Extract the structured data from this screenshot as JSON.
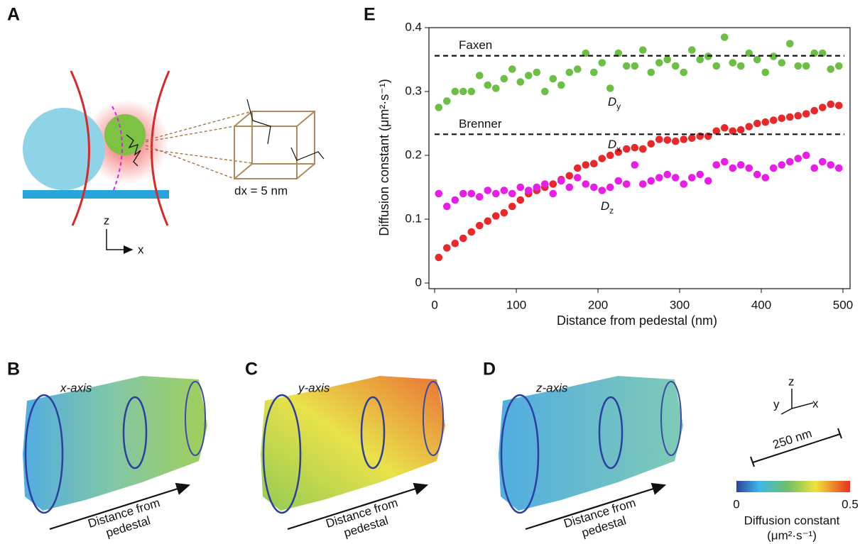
{
  "chart_data": {
    "type": "scatter",
    "panel": "E",
    "xlabel": "Distance from pedestal (nm)",
    "ylabel": "Diffusion constant (μm²·s⁻¹)",
    "xlim": [
      -7,
      508.7
    ],
    "ylim": [
      -0.0089,
      0.4
    ],
    "xticks": [
      0,
      100,
      200,
      300,
      400,
      500
    ],
    "yticks": [
      0,
      0.1,
      0.2,
      0.3,
      0.4
    ],
    "x": [
      5,
      15,
      25,
      35,
      45,
      55,
      65,
      75,
      85,
      95,
      105,
      115,
      125,
      135,
      145,
      155,
      165,
      175,
      185,
      195,
      205,
      215,
      225,
      235,
      245,
      255,
      265,
      275,
      285,
      295,
      305,
      315,
      325,
      335,
      345,
      355,
      365,
      375,
      385,
      395,
      405,
      415,
      425,
      435,
      445,
      455,
      465,
      475,
      485,
      495
    ],
    "series": [
      {
        "label": "D",
        "label_sub": "y",
        "color": "#6cbf44",
        "values": [
          0.275,
          0.285,
          0.3,
          0.3,
          0.3,
          0.325,
          0.31,
          0.305,
          0.32,
          0.335,
          0.315,
          0.325,
          0.33,
          0.3,
          0.32,
          0.31,
          0.33,
          0.335,
          0.36,
          0.33,
          0.345,
          0.305,
          0.36,
          0.34,
          0.34,
          0.365,
          0.33,
          0.345,
          0.35,
          0.34,
          0.33,
          0.365,
          0.35,
          0.355,
          0.34,
          0.385,
          0.345,
          0.34,
          0.36,
          0.35,
          0.33,
          0.355,
          0.345,
          0.375,
          0.34,
          0.34,
          0.36,
          0.36,
          0.335,
          0.34
        ]
      },
      {
        "label": "D",
        "label_sub": "x",
        "color": "#e8282a",
        "values": [
          0.04,
          0.055,
          0.062,
          0.07,
          0.08,
          0.09,
          0.097,
          0.105,
          0.11,
          0.12,
          0.13,
          0.14,
          0.145,
          0.15,
          0.155,
          0.162,
          0.168,
          0.18,
          0.185,
          0.187,
          0.195,
          0.2,
          0.205,
          0.21,
          0.212,
          0.21,
          0.218,
          0.225,
          0.224,
          0.222,
          0.225,
          0.227,
          0.23,
          0.23,
          0.238,
          0.243,
          0.238,
          0.24,
          0.245,
          0.25,
          0.252,
          0.255,
          0.258,
          0.26,
          0.262,
          0.265,
          0.27,
          0.275,
          0.28,
          0.278
        ]
      },
      {
        "label": "D",
        "label_sub": "z",
        "color": "#e81ee8",
        "values": [
          0.14,
          0.12,
          0.13,
          0.14,
          0.14,
          0.135,
          0.145,
          0.14,
          0.145,
          0.14,
          0.15,
          0.145,
          0.15,
          0.155,
          0.14,
          0.16,
          0.15,
          0.165,
          0.155,
          0.15,
          0.145,
          0.15,
          0.16,
          0.155,
          0.185,
          0.155,
          0.16,
          0.165,
          0.17,
          0.165,
          0.155,
          0.165,
          0.17,
          0.16,
          0.185,
          0.19,
          0.18,
          0.185,
          0.18,
          0.17,
          0.165,
          0.18,
          0.185,
          0.19,
          0.195,
          0.2,
          0.18,
          0.19,
          0.185,
          0.18
        ]
      }
    ],
    "reference_lines": [
      {
        "label": "Faxen",
        "value": 0.356
      },
      {
        "label": "Brenner",
        "value": 0.233
      }
    ]
  },
  "figure": {
    "panel_a": {
      "label": "A",
      "axis_z": "z",
      "axis_x": "x",
      "step": "dx = 5 nm"
    },
    "maps": [
      {
        "label": "B",
        "title": "x-axis",
        "arrow_text": [
          "Distance from",
          "pedestal"
        ]
      },
      {
        "label": "C",
        "title": "y-axis",
        "arrow_text": [
          "Distance from",
          "pedestal"
        ]
      },
      {
        "label": "D",
        "title": "z-axis",
        "arrow_text": [
          "Distance from",
          "pedestal"
        ]
      }
    ],
    "triad": {
      "z": "z",
      "y": "y",
      "x": "x"
    },
    "scale_bar": "250 nm",
    "colorbar": {
      "ticks": [
        0,
        0.5
      ],
      "title": "Diffusion constant",
      "unit": "(μm²·s⁻¹)"
    }
  }
}
